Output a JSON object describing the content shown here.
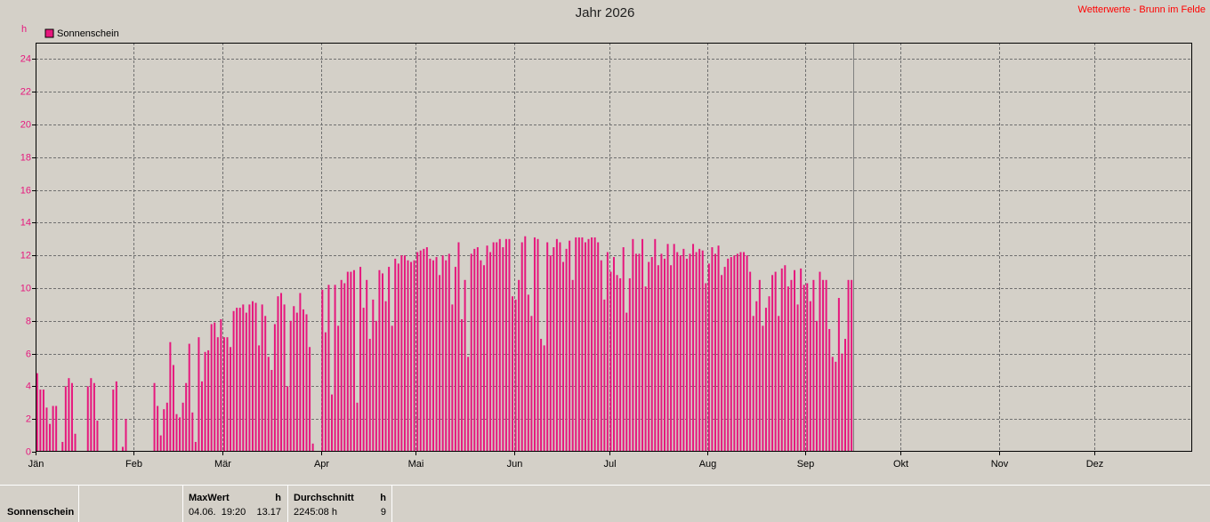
{
  "chart_data": {
    "type": "bar",
    "title": "Jahr 2026",
    "source": "Wetterwerte - Brunn im Felde",
    "y_unit": "h",
    "color": "#e6177d",
    "grid": true,
    "series": [
      {
        "name": "Sonnenschein",
        "color": "#e6177d",
        "values": [
          4.8,
          3.8,
          3.8,
          2.7,
          1.7,
          2.8,
          2.8,
          0,
          0.6,
          4.0,
          4.5,
          4.2,
          1.1,
          0,
          0,
          0,
          4.0,
          4.5,
          4.2,
          1.9,
          0,
          0,
          0,
          0,
          3.8,
          4.3,
          0,
          0.3,
          2.0,
          0,
          0,
          0,
          0,
          0,
          0,
          0,
          0,
          4.2,
          2.8,
          1.0,
          2.6,
          3.0,
          6.7,
          5.3,
          2.3,
          2.1,
          3.0,
          4.2,
          6.6,
          2.4,
          0.6,
          7.0,
          4.3,
          6.1,
          6.2,
          7.8,
          7.9,
          7.0,
          8.1,
          7.0,
          7.0,
          6.4,
          8.6,
          8.8,
          8.8,
          9.0,
          8.5,
          9.0,
          9.2,
          9.1,
          6.5,
          9.0,
          8.3,
          5.8,
          5.0,
          7.8,
          9.5,
          9.7,
          9.0,
          4.0,
          8.0,
          8.9,
          8.5,
          9.7,
          8.7,
          8.4,
          6.4,
          0.5,
          0,
          0,
          9.9,
          7.3,
          10.2,
          3.5,
          10.2,
          7.7,
          10.5,
          10.3,
          11.0,
          11.0,
          11.1,
          3.0,
          11.3,
          8.8,
          10.5,
          6.9,
          9.3,
          8.0,
          11.1,
          10.9,
          9.2,
          11.3,
          7.7,
          11.8,
          11.5,
          12.0,
          12.0,
          11.7,
          11.6,
          11.7,
          12.2,
          12.3,
          12.4,
          12.5,
          11.8,
          11.7,
          11.9,
          10.8,
          12.0,
          11.7,
          12.1,
          9.0,
          11.3,
          12.8,
          8.1,
          10.5,
          5.8,
          12.1,
          12.4,
          12.5,
          11.7,
          11.4,
          12.6,
          12.2,
          12.8,
          12.8,
          13.0,
          12.5,
          13.0,
          13.0,
          9.5,
          9.3,
          10.5,
          12.8,
          13.17,
          9.6,
          8.3,
          13.1,
          13.0,
          6.9,
          6.5,
          12.8,
          12.0,
          12.5,
          13.0,
          12.8,
          11.6,
          12.4,
          12.9,
          10.5,
          13.1,
          13.1,
          13.1,
          12.8,
          13.0,
          13.1,
          13.1,
          12.8,
          11.7,
          9.3,
          12.2,
          11.0,
          11.9,
          10.8,
          10.6,
          12.5,
          8.5,
          10.6,
          13.0,
          12.1,
          12.1,
          13.0,
          10.1,
          11.6,
          11.9,
          13.0,
          11.4,
          12.1,
          11.8,
          12.7,
          11.4,
          12.7,
          12.2,
          12.0,
          12.4,
          11.8,
          12.1,
          12.7,
          12.2,
          12.4,
          12.3,
          10.3,
          11.5,
          12.5,
          12.1,
          12.6,
          10.8,
          11.3,
          11.8,
          11.9,
          12.0,
          12.1,
          12.2,
          12.2,
          12.0,
          11.0,
          8.3,
          9.2,
          10.5,
          7.7,
          8.8,
          9.5,
          10.8,
          11.0,
          8.3,
          11.2,
          11.4,
          10.1,
          10.5,
          11.1,
          9.0,
          11.2,
          10.2,
          10.3,
          9.2,
          10.5,
          8.0,
          11.0,
          10.5,
          10.5,
          7.5,
          5.8,
          5.5,
          9.4,
          6.0,
          6.9,
          10.5,
          10.5
        ]
      }
    ],
    "xlim": [
      0,
      365
    ],
    "xticks": [
      {
        "value": 0,
        "label": "Jän"
      },
      {
        "value": 31,
        "label": "Feb"
      },
      {
        "value": 59,
        "label": "Mär"
      },
      {
        "value": 90,
        "label": "Apr"
      },
      {
        "value": 120,
        "label": "Mai"
      },
      {
        "value": 151,
        "label": "Jun"
      },
      {
        "value": 181,
        "label": "Jul"
      },
      {
        "value": 212,
        "label": "Aug"
      },
      {
        "value": 243,
        "label": "Sep"
      },
      {
        "value": 273,
        "label": "Okt"
      },
      {
        "value": 304,
        "label": "Nov"
      },
      {
        "value": 334,
        "label": "Dez"
      }
    ],
    "ylim": [
      0,
      25
    ],
    "yticks": [
      0,
      2,
      4,
      6,
      8,
      10,
      12,
      14,
      16,
      18,
      20,
      22,
      24
    ]
  },
  "footer": {
    "row_label": "Sonnenschein",
    "max": {
      "header": "MaxWert",
      "unit": "h",
      "time": "04.06.  19:20",
      "value": "13.17"
    },
    "avg": {
      "header": "Durchschnitt",
      "unit": "h",
      "total": "2245:08 h",
      "value": "9"
    }
  }
}
